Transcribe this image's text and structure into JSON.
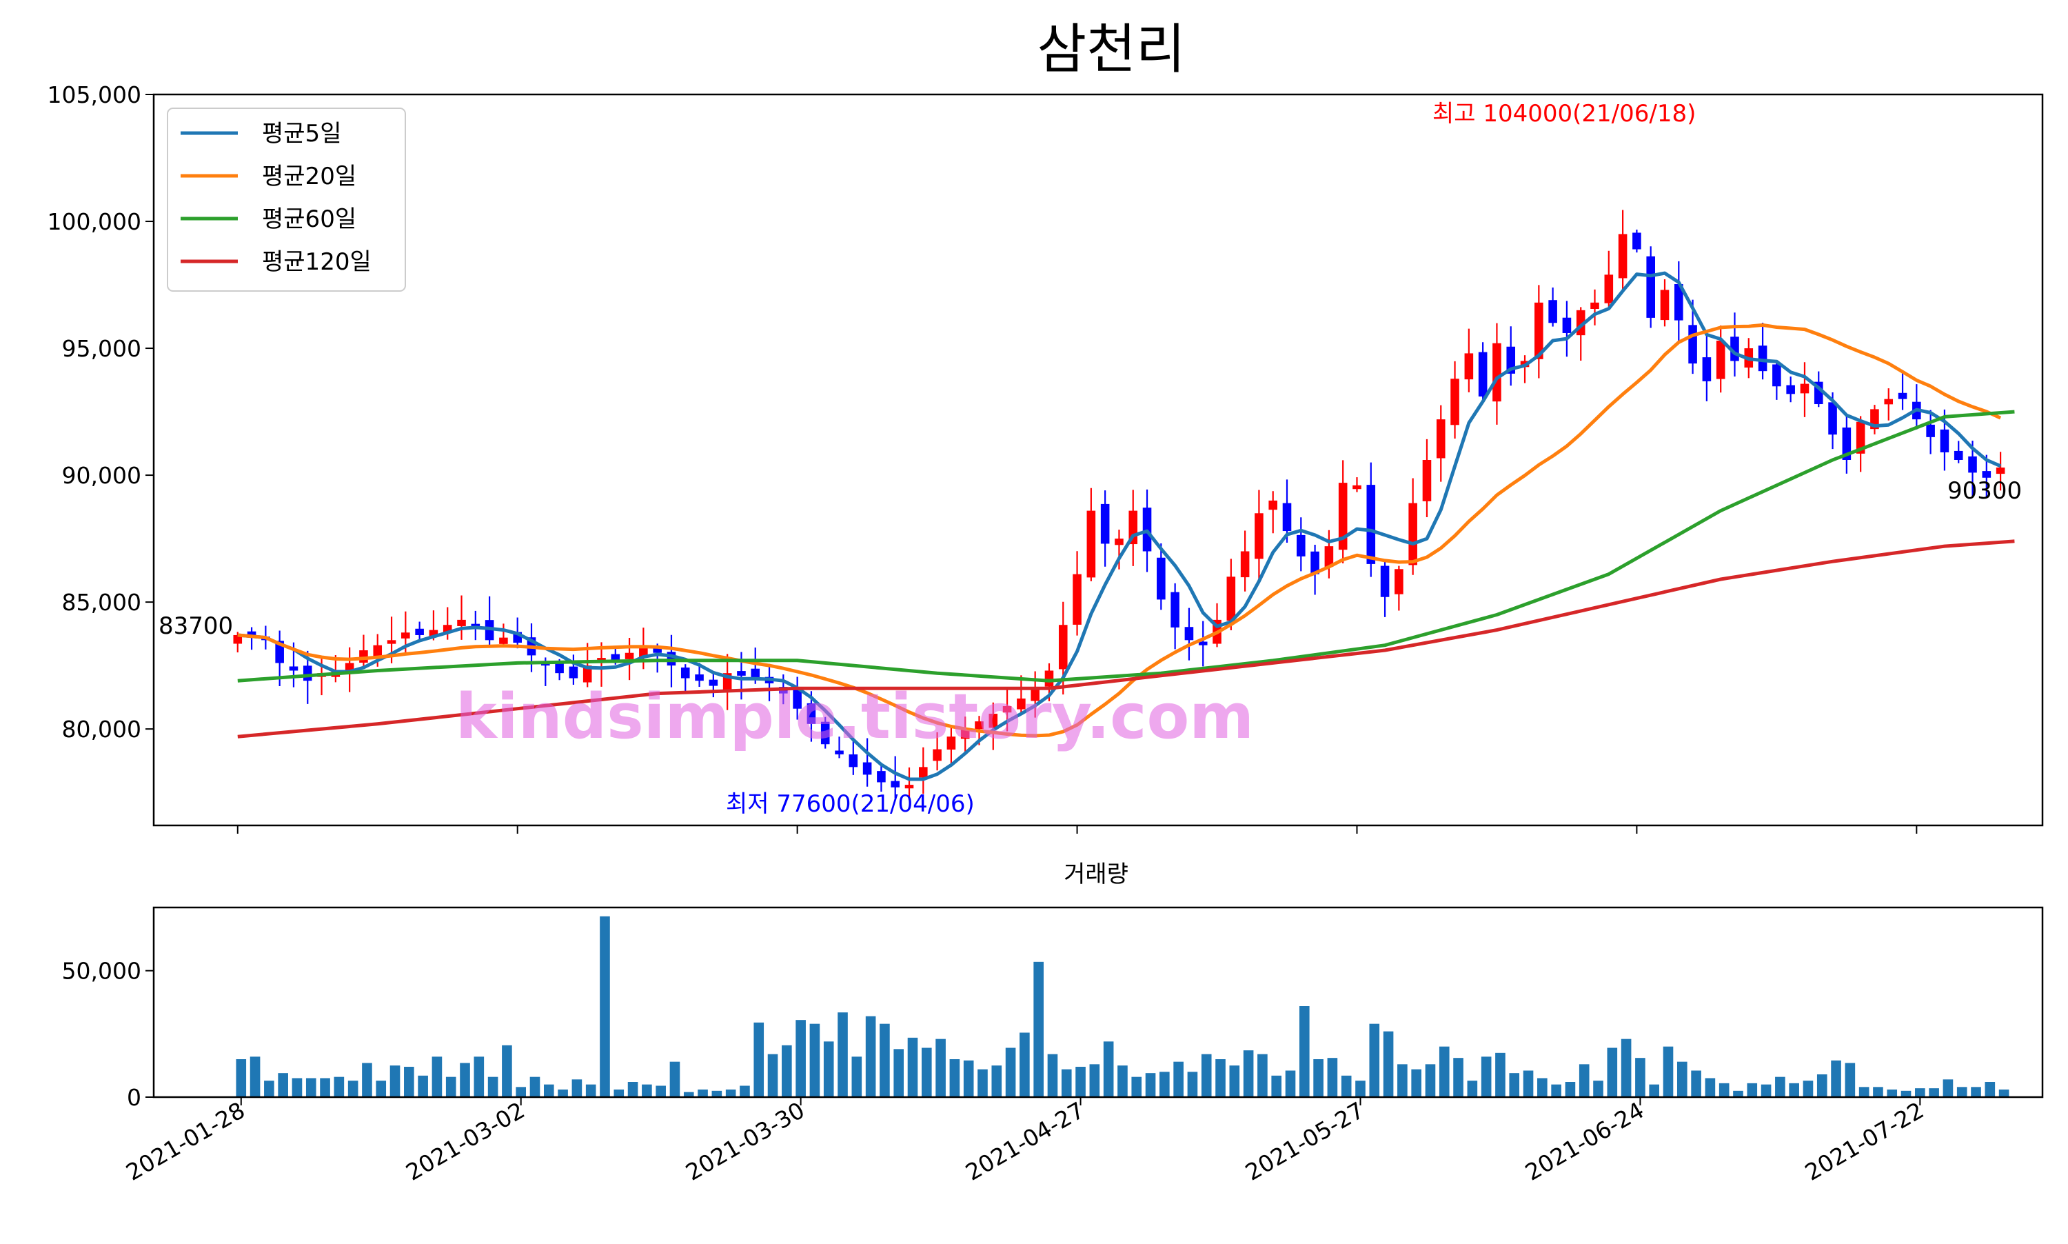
{
  "chart_data": [
    {
      "type": "candlestick",
      "title": "삼천리",
      "ylim": [
        76200,
        105000
      ],
      "y_ticks": [
        80000,
        85000,
        90000,
        95000,
        100000,
        105000
      ],
      "y_tick_labels": [
        "80,000",
        "85,000",
        "90,000",
        "95,000",
        "100,000",
        "105,000"
      ],
      "x_ticks": [
        0,
        20,
        40,
        60,
        80,
        100,
        120
      ],
      "x_tick_labels": [
        "2021-01-28",
        "2021-03-02",
        "2021-03-30",
        "2021-04-27",
        "2021-05-27",
        "2021-06-24",
        "2021-07-22"
      ],
      "x_range": [
        -6,
        129
      ],
      "grid": false,
      "legend_position": "top-left",
      "colors": {
        "up": "#ff0000",
        "down": "#0000ff"
      },
      "start_label": "83700",
      "end_label": "90300",
      "high_label": "최고 104000(21/06/18)",
      "low_label": "최저 77600(21/04/06)",
      "watermark": "kindsimple.tistory.com",
      "close": [
        83700,
        83600,
        83500,
        82600,
        82300,
        81900,
        82200,
        82300,
        82600,
        83100,
        83300,
        83500,
        83800,
        83700,
        83900,
        84100,
        84300,
        84000,
        83500,
        83600,
        83400,
        82900,
        82500,
        82200,
        82000,
        82500,
        82800,
        82700,
        83000,
        83200,
        83000,
        82500,
        82000,
        81900,
        81700,
        82200,
        82100,
        82000,
        81800,
        81400,
        80800,
        80200,
        79400,
        79000,
        78500,
        78200,
        77900,
        77700,
        77800,
        78500,
        79200,
        79700,
        80000,
        80300,
        80600,
        80900,
        81200,
        81600,
        82300,
        84100,
        86100,
        88600,
        87300,
        87500,
        88600,
        87000,
        85100,
        84000,
        83500,
        83300,
        84300,
        86000,
        87000,
        88500,
        89000,
        87800,
        86800,
        86100,
        87200,
        89700,
        89600,
        86500,
        85200,
        86300,
        88900,
        90600,
        92200,
        93800,
        94800,
        93100,
        95200,
        94000,
        94500,
        96800,
        96000,
        95600,
        96500,
        96800,
        97900,
        99500,
        98900,
        96200,
        97300,
        96100,
        94400,
        93700,
        95300,
        94500,
        95000,
        94100,
        93500,
        93200,
        93600,
        92800,
        91600,
        90600,
        92100,
        92600,
        93000,
        93000,
        92200,
        91500,
        90900,
        90600,
        90100,
        89900,
        90300
      ],
      "series": [
        {
          "name": "평균5일",
          "color": "#1f77b4",
          "start": 0
        },
        {
          "name": "평균20일",
          "color": "#ff7f0e",
          "start": 0
        },
        {
          "name": "평균60일",
          "color": "#2ca02c",
          "start": 0
        },
        {
          "name": "평균120일",
          "color": "#d62728",
          "start": 0
        }
      ],
      "ma60_points": [
        [
          0,
          81900
        ],
        [
          10,
          82300
        ],
        [
          20,
          82600
        ],
        [
          30,
          82700
        ],
        [
          40,
          82700
        ],
        [
          50,
          82200
        ],
        [
          58,
          81900
        ],
        [
          66,
          82200
        ],
        [
          74,
          82700
        ],
        [
          82,
          83300
        ],
        [
          90,
          84500
        ],
        [
          98,
          86100
        ],
        [
          106,
          88600
        ],
        [
          114,
          90600
        ],
        [
          122,
          92300
        ],
        [
          127,
          92500
        ]
      ],
      "ma120_points": [
        [
          0,
          79700
        ],
        [
          10,
          80200
        ],
        [
          20,
          80800
        ],
        [
          30,
          81400
        ],
        [
          40,
          81600
        ],
        [
          50,
          81600
        ],
        [
          58,
          81600
        ],
        [
          66,
          82100
        ],
        [
          74,
          82600
        ],
        [
          82,
          83100
        ],
        [
          90,
          83900
        ],
        [
          98,
          84900
        ],
        [
          106,
          85900
        ],
        [
          114,
          86600
        ],
        [
          122,
          87200
        ],
        [
          127,
          87400
        ]
      ]
    },
    {
      "type": "bar",
      "title": "거래량",
      "ylim": [
        0,
        75000
      ],
      "y_ticks": [
        0,
        50000
      ],
      "y_tick_labels": [
        "0",
        "50,000"
      ],
      "color": "#1f77b4",
      "values": [
        15000,
        16000,
        6500,
        9500,
        7500,
        7500,
        7500,
        8000,
        6500,
        13500,
        6500,
        12500,
        12000,
        8500,
        16000,
        8000,
        13500,
        16000,
        8000,
        20500,
        4000,
        8000,
        5000,
        3000,
        7000,
        5000,
        71500,
        3000,
        6000,
        5000,
        4500,
        14000,
        2000,
        3000,
        2500,
        3000,
        4500,
        29500,
        17000,
        20500,
        30500,
        29000,
        22000,
        33500,
        16000,
        32000,
        29000,
        19000,
        23500,
        19500,
        23000,
        15000,
        14500,
        11000,
        12500,
        19500,
        25500,
        53500,
        17000,
        11000,
        12000,
        13000,
        22000,
        12500,
        8000,
        9500,
        10000,
        14000,
        10000,
        17000,
        15000,
        12500,
        18500,
        17000,
        8500,
        10500,
        36000,
        15000,
        15500,
        8500,
        6500,
        29000,
        26000,
        13000,
        11000,
        13000,
        20000,
        15500,
        6500,
        16000,
        17500,
        9500,
        10500,
        7500,
        5000,
        6000,
        13000,
        6500,
        19500,
        23000,
        15500,
        5000,
        20000,
        14000,
        10500,
        7500,
        5500,
        2500,
        5500,
        5000,
        8000,
        5500,
        6500,
        9000,
        14500,
        13500,
        4000,
        4000,
        3000,
        2500,
        3500,
        3500,
        7000,
        4000,
        4000,
        6000,
        3000
      ]
    }
  ]
}
